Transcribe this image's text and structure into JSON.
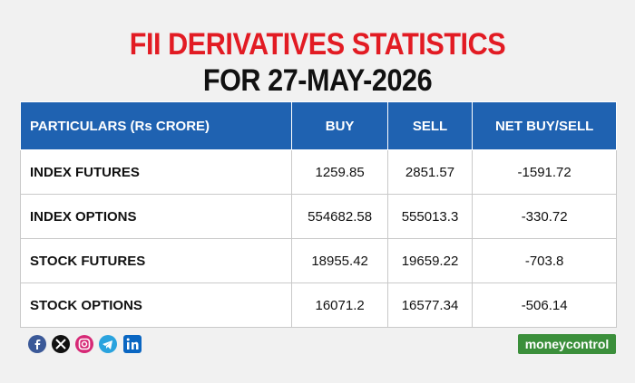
{
  "header": {
    "title": "FII DERIVATIVES STATISTICS",
    "subtitle": "FOR 27-MAY-2026"
  },
  "table": {
    "columns": [
      "PARTICULARS (Rs CRORE)",
      "BUY",
      "SELL",
      "NET BUY/SELL"
    ],
    "rows": [
      [
        "INDEX FUTURES",
        "1259.85",
        "2851.57",
        "-1591.72"
      ],
      [
        "INDEX OPTIONS",
        "554682.58",
        "555013.3",
        "-330.72"
      ],
      [
        "STOCK FUTURES",
        "18955.42",
        "19659.22",
        "-703.8"
      ],
      [
        "STOCK OPTIONS",
        "16071.2",
        "16577.34",
        "-506.14"
      ]
    ]
  },
  "footer": {
    "brand": "moneycontrol"
  }
}
